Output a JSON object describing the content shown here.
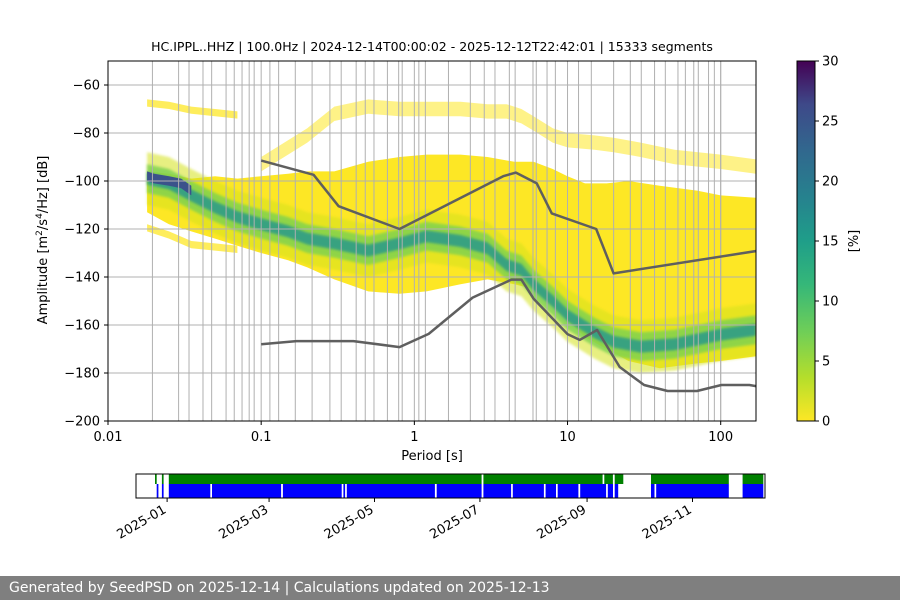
{
  "chart_data": [
    {
      "type": "heatmap",
      "title": "HC.IPPL..HHZ | 100.0Hz | 2024-12-14T00:00:02 - 2025-12-12T22:42:01 | 15333 segments",
      "xlabel": "Period [s]",
      "ylabel_parts": [
        "Amplitude [m",
        "2",
        "/s",
        "4",
        "/Hz] [dB]"
      ],
      "x_scale": "log",
      "xlim": [
        0.01,
        170
      ],
      "ylim": [
        -200,
        -50
      ],
      "x_ticks": [
        {
          "value": 0.01,
          "label": "0.01"
        },
        {
          "value": 0.1,
          "label": "0.1"
        },
        {
          "value": 1,
          "label": "1"
        },
        {
          "value": 10,
          "label": "10"
        },
        {
          "value": 100,
          "label": "100"
        }
      ],
      "y_ticks": [
        {
          "value": -60,
          "label": "−60"
        },
        {
          "value": -80,
          "label": "−80"
        },
        {
          "value": -100,
          "label": "−100"
        },
        {
          "value": -120,
          "label": "−120"
        },
        {
          "value": -140,
          "label": "−140"
        },
        {
          "value": -160,
          "label": "−160"
        },
        {
          "value": -180,
          "label": "−180"
        },
        {
          "value": -200,
          "label": "−200"
        }
      ],
      "grid": true,
      "colormap": "viridis",
      "colorbar": {
        "label": "[%]",
        "range": [
          0,
          30
        ],
        "ticks": [
          {
            "value": 0,
            "label": "0"
          },
          {
            "value": 5,
            "label": "5"
          },
          {
            "value": 10,
            "label": "10"
          },
          {
            "value": 15,
            "label": "15"
          },
          {
            "value": 20,
            "label": "20"
          },
          {
            "value": 25,
            "label": "25"
          },
          {
            "value": 30,
            "label": "30"
          }
        ]
      },
      "density_envelope": {
        "period": [
          0.018,
          0.025,
          0.035,
          0.05,
          0.07,
          0.1,
          0.15,
          0.2,
          0.3,
          0.5,
          0.8,
          1.2,
          2,
          3,
          4.5,
          6,
          8,
          10,
          13,
          18,
          25,
          40,
          70,
          100,
          170
        ],
        "upper_db": [
          -96,
          -97,
          -99,
          -98,
          -99,
          -98,
          -97,
          -96,
          -96,
          -92,
          -90,
          -89,
          -89,
          -90,
          -92,
          -92,
          -95,
          -98,
          -101,
          -101,
          -100,
          -102,
          -104,
          -106,
          -107
        ],
        "lower_db": [
          -113,
          -118,
          -121,
          -124,
          -127,
          -130,
          -133,
          -136,
          -141,
          -146,
          -147,
          -146,
          -143,
          -141,
          -143,
          -145,
          -152,
          -158,
          -165,
          -170,
          -175,
          -178,
          -176,
          -175,
          -173
        ]
      },
      "mode_curve": {
        "period": [
          0.018,
          0.025,
          0.035,
          0.05,
          0.07,
          0.1,
          0.15,
          0.2,
          0.3,
          0.5,
          0.8,
          1.2,
          2,
          3,
          4,
          5,
          6,
          8,
          10,
          15,
          20,
          30,
          50,
          100,
          170
        ],
        "db": [
          -99,
          -101,
          -106,
          -111,
          -115,
          -118,
          -121,
          -124,
          -126,
          -129,
          -126,
          -123,
          -125,
          -128,
          -135,
          -137,
          -143,
          -150,
          -156,
          -163,
          -167,
          -169,
          -168,
          -164,
          -162
        ]
      },
      "peak_band": {
        "period": [
          0.018,
          0.02,
          0.025,
          0.03,
          0.035
        ],
        "db": [
          -98,
          -99,
          -100,
          -101,
          -104
        ]
      },
      "sparse_upper_band": {
        "period": [
          0.1,
          0.2,
          0.3,
          0.5,
          0.8,
          1.2,
          2,
          3,
          4,
          5,
          6,
          8,
          10,
          15,
          20,
          30,
          50,
          100,
          170
        ],
        "db": [
          -90,
          -78,
          -69,
          -66,
          -67,
          -67,
          -67,
          -68,
          -68,
          -70,
          -73,
          -78,
          -80,
          -81,
          -82,
          -84,
          -87,
          -89,
          -91
        ]
      },
      "low_period_stubs": {
        "period": [
          0.018,
          0.025,
          0.035,
          0.05,
          0.07
        ],
        "upper_db": [
          -66,
          -67,
          -69,
          -70,
          -71
        ],
        "lower_db": [
          -121,
          -124,
          -128,
          -129,
          -130
        ]
      },
      "nhnm_curve": {
        "period": [
          0.1,
          0.22,
          0.32,
          0.8,
          3.8,
          4.6,
          6.3,
          7.9,
          15.4,
          20,
          354.8
        ],
        "db": [
          -91.5,
          -97.4,
          -110.5,
          -120,
          -98,
          -96.5,
          -101,
          -113.5,
          -120,
          -138.5,
          -126
        ]
      },
      "nlnm_curve": {
        "period": [
          0.1,
          0.17,
          0.4,
          0.8,
          1.24,
          2.4,
          4.3,
          5,
          6,
          10,
          12,
          15.6,
          21.9,
          31.6,
          45,
          70,
          101,
          154,
          170
        ],
        "db": [
          -168,
          -166.7,
          -166.7,
          -169.2,
          -163.7,
          -148.6,
          -141.1,
          -141.1,
          -149,
          -163.8,
          -166.2,
          -162.1,
          -177.5,
          -185,
          -187.5,
          -187.5,
          -185,
          -185,
          -185.5
        ]
      },
      "vertical_lines_period": [
        0.0195,
        0.0289,
        0.0338,
        0.0417,
        0.0475,
        0.059,
        0.0667,
        0.075,
        0.0835,
        0.09,
        0.114,
        0.13,
        0.167,
        0.215,
        0.281,
        0.333,
        0.417,
        0.478,
        0.545,
        0.667,
        0.79,
        0.833,
        1.07,
        1.18,
        1.67,
        2.32,
        2.86,
        3.36,
        4.17,
        4.55,
        5.95,
        6.25,
        7.35,
        8.33,
        11.8,
        14.3,
        20,
        25.7,
        30.3,
        37,
        43.5,
        52.6,
        58.8,
        66.7,
        71.4,
        83.3,
        90.9,
        100
      ]
    },
    {
      "type": "timeline",
      "date_range": [
        "2024-12-14",
        "2025-12-12"
      ],
      "x_ticks": [
        {
          "value": "2025-01-01",
          "label": "2025-01"
        },
        {
          "value": "2025-03-01",
          "label": "2025-03"
        },
        {
          "value": "2025-05-01",
          "label": "2025-05"
        },
        {
          "value": "2025-07-01",
          "label": "2025-07"
        },
        {
          "value": "2025-09-01",
          "label": "2025-09"
        },
        {
          "value": "2025-11-01",
          "label": "2025-11"
        }
      ],
      "colors": {
        "green": "#008000",
        "blue": "#0000ff"
      },
      "green_segments": [
        [
          "2024-12-25",
          "2024-12-26"
        ],
        [
          "2024-12-29",
          "2024-12-30"
        ],
        [
          "2025-01-02",
          "2025-07-02"
        ],
        [
          "2025-07-03",
          "2025-09-10"
        ],
        [
          "2025-09-11",
          "2025-09-16"
        ],
        [
          "2025-09-17",
          "2025-09-22"
        ],
        [
          "2025-10-08",
          "2025-11-22"
        ],
        [
          "2025-11-30",
          "2025-12-12"
        ]
      ],
      "blue_segments": [
        [
          "2024-12-26",
          "2024-12-27"
        ],
        [
          "2024-12-29",
          "2024-12-30"
        ],
        [
          "2025-01-02",
          "2025-01-26"
        ],
        [
          "2025-01-27",
          "2025-03-08"
        ],
        [
          "2025-03-09",
          "2025-04-12"
        ],
        [
          "2025-04-13",
          "2025-04-14"
        ],
        [
          "2025-04-15",
          "2025-06-05"
        ],
        [
          "2025-06-06",
          "2025-07-02"
        ],
        [
          "2025-07-03",
          "2025-07-19"
        ],
        [
          "2025-07-20",
          "2025-08-07"
        ],
        [
          "2025-08-08",
          "2025-08-14"
        ],
        [
          "2025-08-15",
          "2025-08-27"
        ],
        [
          "2025-08-28",
          "2025-09-12"
        ],
        [
          "2025-09-13",
          "2025-09-16"
        ],
        [
          "2025-09-17",
          "2025-09-19"
        ],
        [
          "2025-10-08",
          "2025-10-10"
        ],
        [
          "2025-10-11",
          "2025-11-22"
        ],
        [
          "2025-11-30",
          "2025-12-12"
        ]
      ]
    }
  ],
  "footer": {
    "text": "Generated by SeedPSD on 2025-12-14 | Calculations updated on 2025-12-13"
  }
}
